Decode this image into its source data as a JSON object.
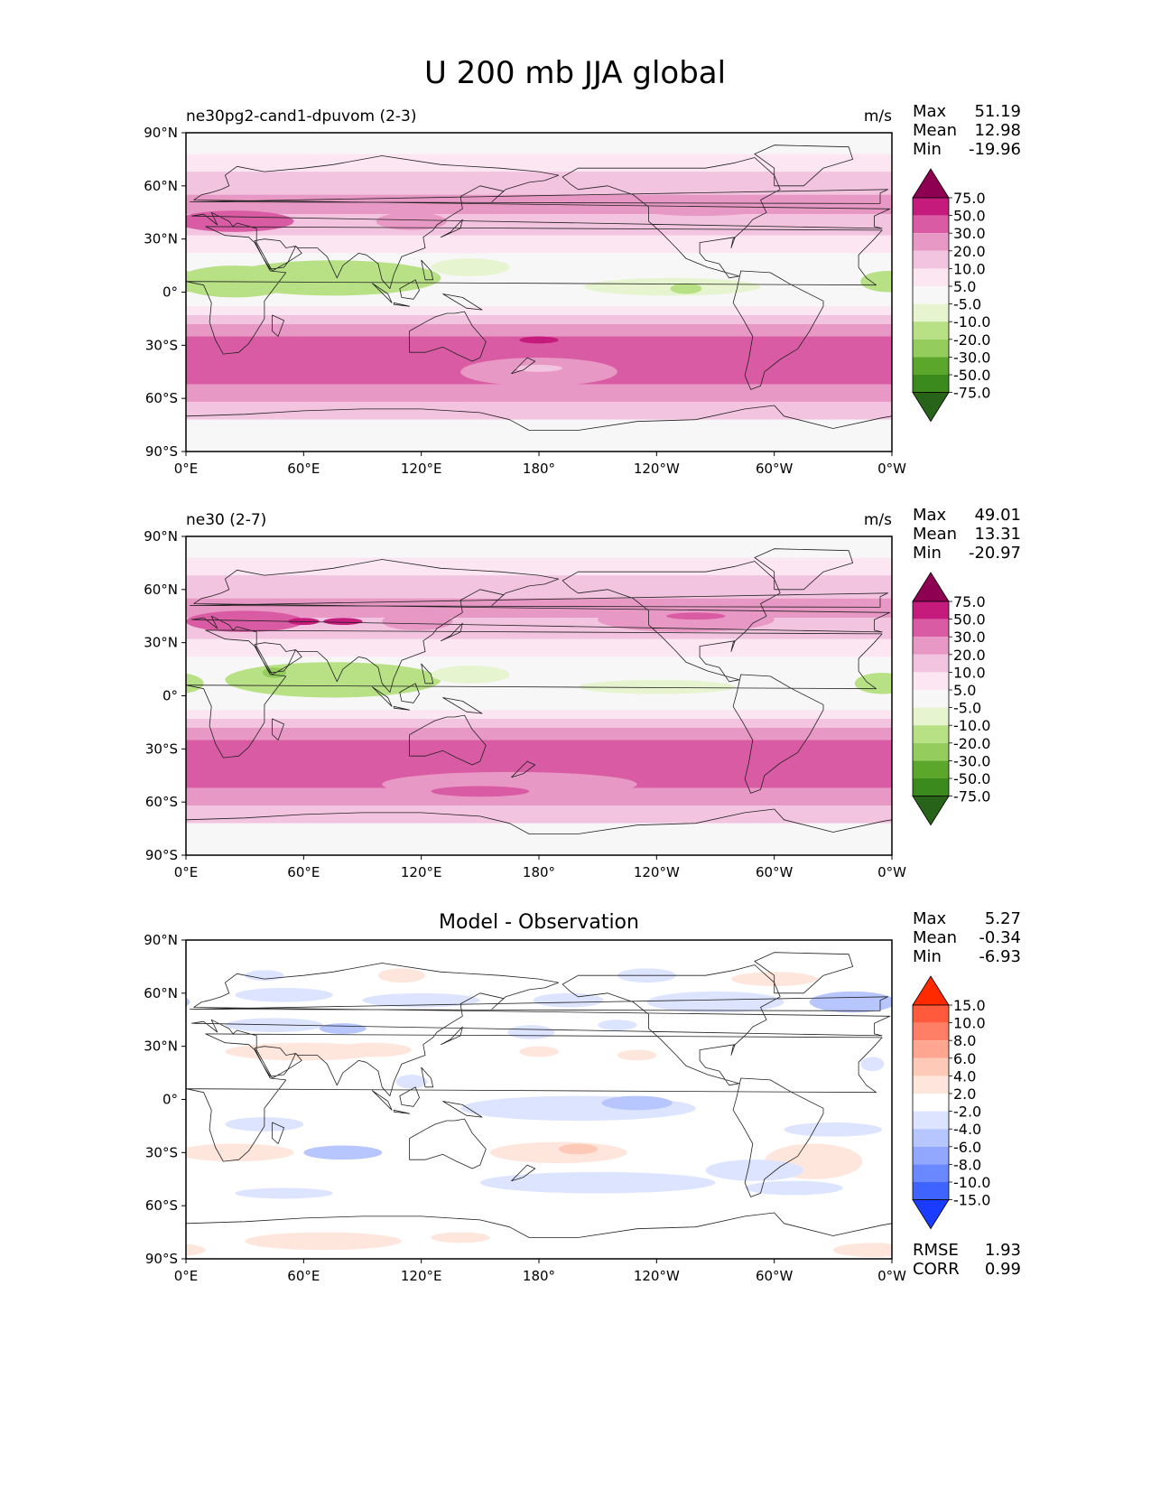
{
  "figure_title": "U 200 mb JJA global",
  "colors": {
    "frame": "#000000",
    "land_outline": "#222222",
    "plot_bg": "#f7f7f7",
    "diff_bg": "#ffffff"
  },
  "chart_data": [
    {
      "type": "heatmap",
      "panel": "test",
      "title_left": "ne30pg2-cand1-dpuvom (2-3)",
      "title_right": "m/s",
      "stats": [
        {
          "label": "Max",
          "value": "51.19"
        },
        {
          "label": "Mean",
          "value": "12.98"
        },
        {
          "label": "Min",
          "value": "-19.96"
        }
      ],
      "x_ticks": [
        "0°E",
        "60°E",
        "120°E",
        "180°",
        "120°W",
        "60°W",
        "0°W"
      ],
      "y_ticks": [
        "90°N",
        "60°N",
        "30°N",
        "0°",
        "30°S",
        "60°S",
        "90°S"
      ],
      "colorbar": {
        "labels": [
          "75.0",
          "50.0",
          "30.0",
          "20.0",
          "10.0",
          "5.0",
          "-5.0",
          "-10.0",
          "-20.0",
          "-30.0",
          "-50.0",
          "-75.0"
        ],
        "colors": [
          "#8e0152",
          "#c51b7d",
          "#d95ba3",
          "#e898c5",
          "#f3c4e0",
          "#fbe6f1",
          "#f7f7f7",
          "#e6f5d0",
          "#b8e186",
          "#95cc5e",
          "#5aa72c",
          "#3b8a1e",
          "#276419"
        ]
      }
    },
    {
      "type": "heatmap",
      "panel": "reference",
      "title_left": "ne30 (2-7)",
      "title_right": "m/s",
      "stats": [
        {
          "label": "Max",
          "value": "49.01"
        },
        {
          "label": "Mean",
          "value": "13.31"
        },
        {
          "label": "Min",
          "value": "-20.97"
        }
      ],
      "x_ticks": [
        "0°E",
        "60°E",
        "120°E",
        "180°",
        "120°W",
        "60°W",
        "0°W"
      ],
      "y_ticks": [
        "90°N",
        "60°N",
        "30°N",
        "0°",
        "30°S",
        "60°S",
        "90°S"
      ],
      "colorbar": {
        "labels": [
          "75.0",
          "50.0",
          "30.0",
          "20.0",
          "10.0",
          "5.0",
          "-5.0",
          "-10.0",
          "-20.0",
          "-30.0",
          "-50.0",
          "-75.0"
        ],
        "colors": [
          "#8e0152",
          "#c51b7d",
          "#d95ba3",
          "#e898c5",
          "#f3c4e0",
          "#fbe6f1",
          "#f7f7f7",
          "#e6f5d0",
          "#b8e186",
          "#95cc5e",
          "#5aa72c",
          "#3b8a1e",
          "#276419"
        ]
      }
    },
    {
      "type": "heatmap",
      "panel": "difference",
      "title_center": "Model - Observation",
      "stats": [
        {
          "label": "Max",
          "value": "5.27"
        },
        {
          "label": "Mean",
          "value": "-0.34"
        },
        {
          "label": "Min",
          "value": "-6.93"
        }
      ],
      "x_ticks": [
        "0°E",
        "60°E",
        "120°E",
        "180°",
        "120°W",
        "60°W",
        "0°W"
      ],
      "y_ticks": [
        "90°N",
        "60°N",
        "30°N",
        "0°",
        "30°S",
        "60°S",
        "90°S"
      ],
      "colorbar": {
        "labels": [
          "15.0",
          "10.0",
          "8.0",
          "6.0",
          "4.0",
          "2.0",
          "-2.0",
          "-4.0",
          "-6.0",
          "-8.0",
          "-10.0",
          "-15.0"
        ],
        "colors": [
          "#ff2a00",
          "#ff5a3c",
          "#ff7f66",
          "#ffa690",
          "#ffc9b8",
          "#ffe6dd",
          "#ffffff",
          "#dde4ff",
          "#b8c6ff",
          "#92a8ff",
          "#6a88ff",
          "#3f63ff",
          "#1a3cff"
        ]
      },
      "metrics": [
        {
          "label": "RMSE",
          "value": "1.93"
        },
        {
          "label": "CORR",
          "value": "0.99"
        }
      ]
    }
  ]
}
